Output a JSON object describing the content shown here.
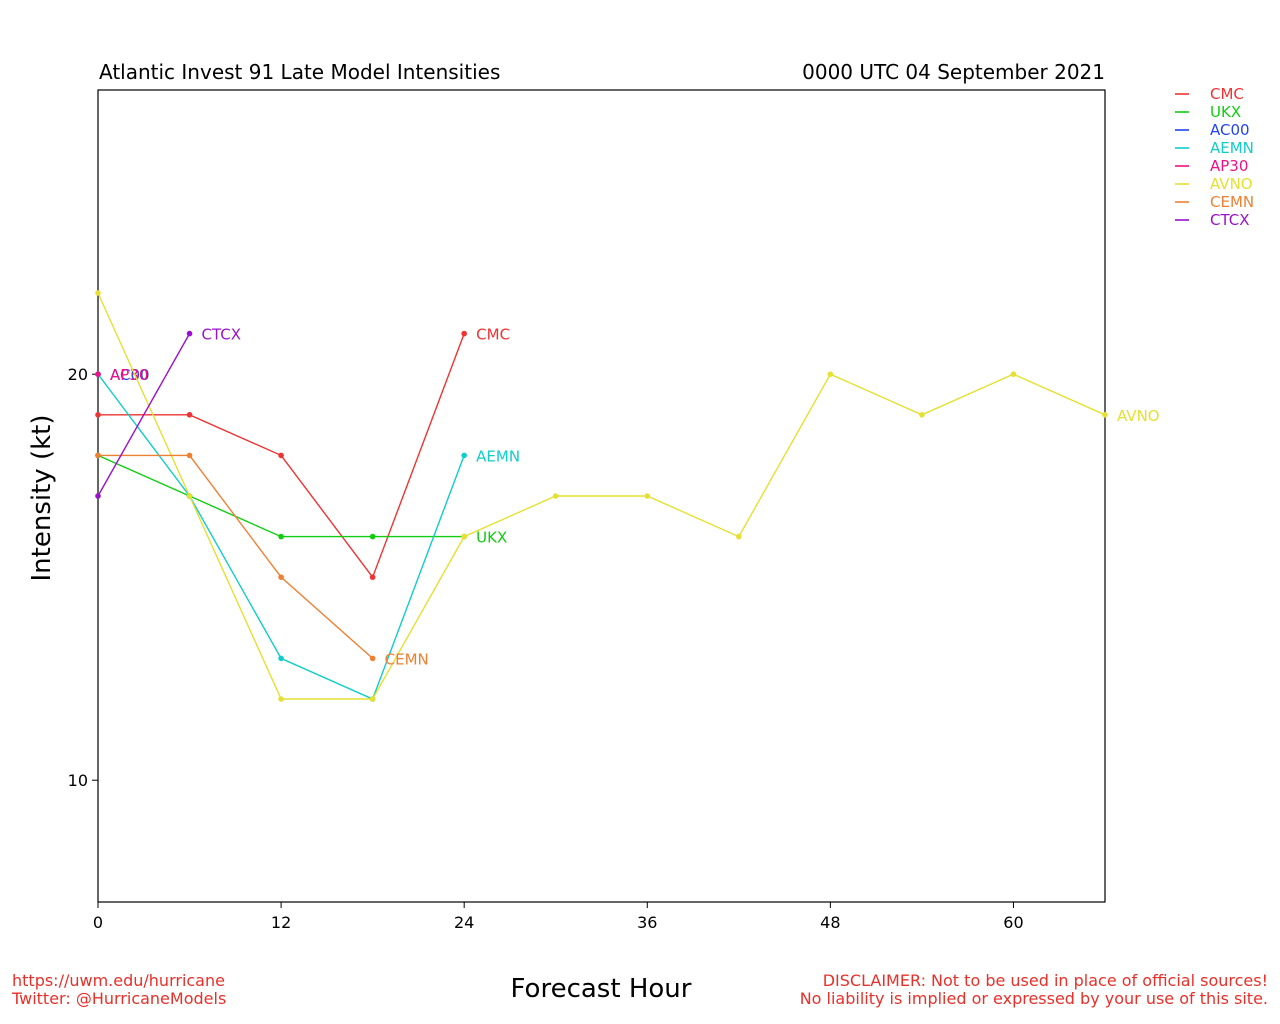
{
  "footer": {
    "url": "https://uwm.edu/hurricane",
    "twitter": "Twitter: @HurricaneModels",
    "disclaimer_1": "DISCLAIMER: Not to be used in place of official sources!",
    "disclaimer_2": "No liability is implied or expressed by your use of this site.",
    "color": "#e8302a"
  },
  "chart_data": {
    "type": "line",
    "title": "Atlantic Invest 91 Late Model Intensities",
    "subtitle": "0000 UTC 04 September 2021",
    "xlabel": "Forecast Hour",
    "ylabel": "Intensity (kt)",
    "xlim": [
      0,
      66
    ],
    "ylim": [
      7,
      27
    ],
    "xticks": [
      0,
      12,
      24,
      36,
      48,
      60
    ],
    "yticks": [
      10,
      20
    ],
    "grid": false,
    "legend_position": "right-outside-top",
    "series": [
      {
        "name": "CMC",
        "color": "#ee3333",
        "x": [
          0,
          6,
          12,
          18,
          24
        ],
        "y": [
          19,
          19,
          18,
          15,
          21
        ]
      },
      {
        "name": "UKX",
        "color": "#11cc11",
        "x": [
          0,
          6,
          12,
          18,
          24
        ],
        "y": [
          18,
          17,
          16,
          16,
          16
        ]
      },
      {
        "name": "AC00",
        "color": "#2244ee",
        "x": [
          0
        ],
        "y": [
          20
        ]
      },
      {
        "name": "AEMN",
        "color": "#11cccc",
        "x": [
          0,
          6,
          12,
          18,
          24
        ],
        "y": [
          20,
          17,
          13,
          12,
          18
        ]
      },
      {
        "name": "AP30",
        "color": "#ee1188",
        "x": [
          0
        ],
        "y": [
          20
        ]
      },
      {
        "name": "AVNO",
        "color": "#e5e033",
        "x": [
          0,
          6,
          12,
          18,
          24,
          30,
          36,
          42,
          48,
          54,
          60,
          66
        ],
        "y": [
          22,
          17,
          12,
          12,
          16,
          17,
          17,
          16,
          20,
          19,
          20,
          19
        ]
      },
      {
        "name": "CEMN",
        "color": "#ee8033",
        "x": [
          0,
          6,
          12,
          18
        ],
        "y": [
          18,
          18,
          15,
          13
        ]
      },
      {
        "name": "CTCX",
        "color": "#9911cc",
        "x": [
          0,
          6
        ],
        "y": [
          17,
          21
        ]
      }
    ]
  }
}
